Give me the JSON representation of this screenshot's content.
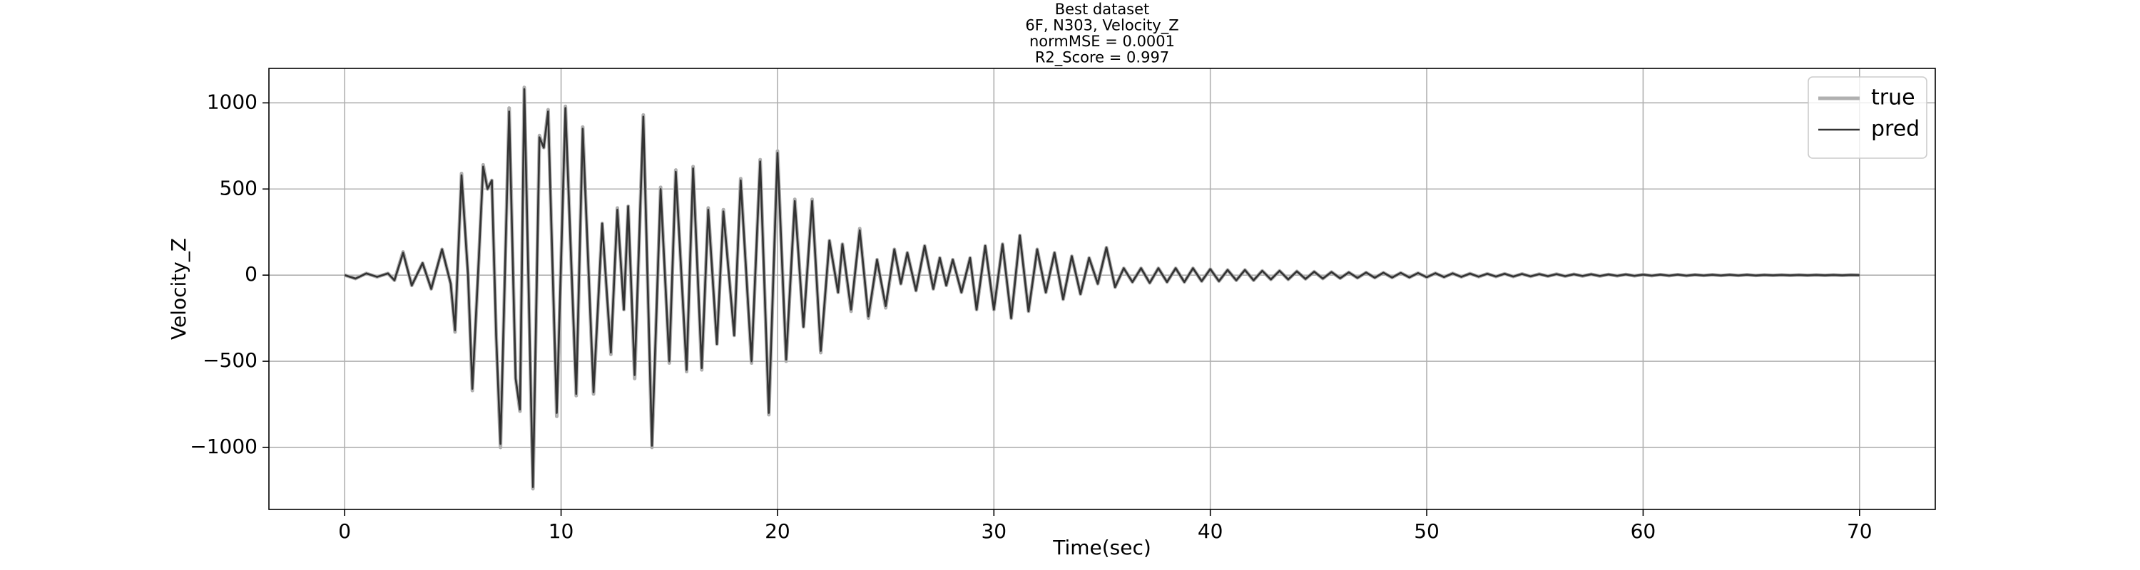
{
  "chart_data": {
    "type": "line",
    "title": [
      "Best dataset",
      "6F, N303, Velocity_Z",
      "normMSE = 0.0001",
      "R2_Score = 0.997"
    ],
    "x_label": "Time(sec)",
    "y_label": "Velocity_Z",
    "x": [
      0,
      0.5,
      1,
      1.5,
      2,
      2.3,
      2.7,
      3.1,
      3.6,
      4.0,
      4.5,
      4.9,
      5.1,
      5.4,
      5.7,
      5.9,
      6.2,
      6.4,
      6.6,
      6.8,
      7.0,
      7.2,
      7.6,
      7.9,
      8.1,
      8.3,
      8.7,
      9.0,
      9.2,
      9.4,
      9.8,
      10.2,
      10.7,
      11.0,
      11.5,
      11.9,
      12.3,
      12.6,
      12.9,
      13.1,
      13.4,
      13.8,
      14.2,
      14.6,
      15.0,
      15.3,
      15.8,
      16.1,
      16.5,
      16.8,
      17.2,
      17.5,
      18.0,
      18.3,
      18.8,
      19.2,
      19.6,
      20.0,
      20.4,
      20.8,
      21.2,
      21.6,
      22.0,
      22.4,
      22.8,
      23.0,
      23.4,
      23.8,
      24.2,
      24.6,
      25.0,
      25.4,
      25.7,
      26.0,
      26.4,
      26.8,
      27.2,
      27.5,
      27.8,
      28.1,
      28.5,
      28.9,
      29.2,
      29.6,
      30.0,
      30.4,
      30.8,
      31.2,
      31.6,
      32.0,
      32.4,
      32.8,
      33.2,
      33.6,
      34.0,
      34.4,
      34.8,
      35.2,
      35.6,
      36.0,
      36.4,
      36.8,
      37.2,
      37.6,
      38,
      38.4,
      38.8,
      39.2,
      39.6,
      40,
      40.4,
      40.8,
      41.2,
      41.6,
      42,
      42.4,
      42.8,
      43.2,
      43.6,
      44,
      44.4,
      44.8,
      45.2,
      45.6,
      46,
      46.4,
      46.8,
      47.2,
      47.6,
      48,
      48.4,
      48.8,
      49.2,
      49.6,
      50,
      50.4,
      50.8,
      51.2,
      51.6,
      52,
      52.4,
      52.8,
      53.2,
      53.6,
      54,
      54.4,
      54.8,
      55.2,
      55.6,
      56,
      56.4,
      56.8,
      57.2,
      57.6,
      58,
      58.4,
      58.8,
      59.2,
      59.6,
      60,
      60.4,
      60.8,
      61.2,
      61.6,
      62,
      62.4,
      62.8,
      63.2,
      63.6,
      64,
      64.4,
      64.8,
      65.2,
      65.6,
      66,
      66.4,
      66.8,
      67.2,
      67.6,
      68,
      68.4,
      68.8,
      69.2,
      69.6,
      70
    ],
    "series": [
      {
        "name": "true",
        "color": "#b0b0b0",
        "width": 5,
        "values": [
          0,
          -20,
          10,
          -10,
          10,
          -30,
          135,
          -60,
          70,
          -80,
          150,
          -50,
          -330,
          590,
          0,
          -670,
          100,
          640,
          500,
          550,
          -350,
          -1000,
          970,
          -600,
          -790,
          1090,
          -1240,
          810,
          740,
          960,
          -820,
          980,
          -700,
          860,
          -690,
          300,
          -460,
          390,
          -200,
          400,
          -600,
          930,
          -1000,
          510,
          -510,
          610,
          -560,
          630,
          -550,
          390,
          -400,
          380,
          -350,
          560,
          -510,
          670,
          -810,
          720,
          -500,
          440,
          -300,
          440,
          -450,
          200,
          -100,
          180,
          -210,
          270,
          -250,
          90,
          -190,
          150,
          -50,
          130,
          -90,
          170,
          -80,
          100,
          -60,
          90,
          -100,
          100,
          -200,
          170,
          -200,
          180,
          -250,
          230,
          -210,
          150,
          -100,
          130,
          -140,
          110,
          -110,
          100,
          -50,
          160,
          -70,
          40,
          -40,
          40,
          -45,
          40,
          -40,
          40,
          -40,
          40,
          -35,
          35,
          -35,
          30,
          -30,
          30,
          -30,
          25,
          -25,
          25,
          -25,
          22,
          -22,
          20,
          -20,
          18,
          -18,
          16,
          -16,
          15,
          -15,
          14,
          -14,
          13,
          -13,
          12,
          -12,
          11,
          -11,
          10,
          -10,
          9,
          -9,
          8,
          -8,
          8,
          -8,
          7,
          -7,
          6,
          -6,
          6,
          -6,
          5,
          -5,
          5,
          -5,
          4,
          -4,
          4,
          -4,
          3,
          -3,
          3,
          -3,
          3,
          -3,
          2,
          -2,
          2,
          -2,
          2,
          -2,
          2,
          -2,
          1,
          -1,
          1,
          -1,
          1,
          -1,
          1,
          -1,
          1,
          -1,
          1,
          0
        ]
      },
      {
        "name": "pred",
        "color": "#333333",
        "width": 2.6,
        "values": [
          0,
          -20,
          10,
          -10,
          10,
          -30,
          130,
          -60,
          70,
          -80,
          150,
          -50,
          -320,
          580,
          0,
          -660,
          100,
          630,
          500,
          550,
          -350,
          -980,
          950,
          -600,
          -780,
          1080,
          -1230,
          800,
          740,
          950,
          -800,
          970,
          -690,
          850,
          -680,
          300,
          -450,
          380,
          -200,
          400,
          -580,
          920,
          -990,
          500,
          -500,
          600,
          -550,
          620,
          -540,
          380,
          -400,
          370,
          -350,
          550,
          -500,
          660,
          -800,
          710,
          -490,
          430,
          -300,
          430,
          -440,
          200,
          -100,
          180,
          -200,
          260,
          -240,
          90,
          -180,
          150,
          -50,
          130,
          -90,
          170,
          -80,
          100,
          -60,
          90,
          -100,
          100,
          -200,
          170,
          -200,
          180,
          -250,
          230,
          -210,
          150,
          -100,
          130,
          -140,
          110,
          -110,
          100,
          -50,
          160,
          -70,
          40,
          -40,
          40,
          -45,
          40,
          -40,
          40,
          -40,
          40,
          -35,
          35,
          -35,
          30,
          -30,
          30,
          -30,
          25,
          -25,
          25,
          -25,
          22,
          -22,
          20,
          -20,
          18,
          -18,
          16,
          -16,
          15,
          -15,
          14,
          -14,
          13,
          -13,
          12,
          -12,
          11,
          -11,
          10,
          -10,
          9,
          -9,
          8,
          -8,
          8,
          -8,
          7,
          -7,
          6,
          -6,
          6,
          -6,
          5,
          -5,
          5,
          -5,
          4,
          -4,
          4,
          -4,
          3,
          -3,
          3,
          -3,
          3,
          -3,
          2,
          -2,
          2,
          -2,
          2,
          -2,
          2,
          -2,
          1,
          -1,
          1,
          -1,
          1,
          -1,
          1,
          -1,
          1,
          -1,
          1,
          0
        ]
      }
    ],
    "xlim": [
      -3.5,
      73.5
    ],
    "ylim": [
      -1360,
      1200
    ],
    "xticks": [
      0,
      10,
      20,
      30,
      40,
      50,
      60,
      70
    ],
    "yticks": [
      {
        "value": -1000,
        "label": "−1000"
      },
      {
        "value": -500,
        "label": "−500"
      },
      0,
      500,
      1000
    ],
    "grid": true,
    "legend": "upper right"
  }
}
